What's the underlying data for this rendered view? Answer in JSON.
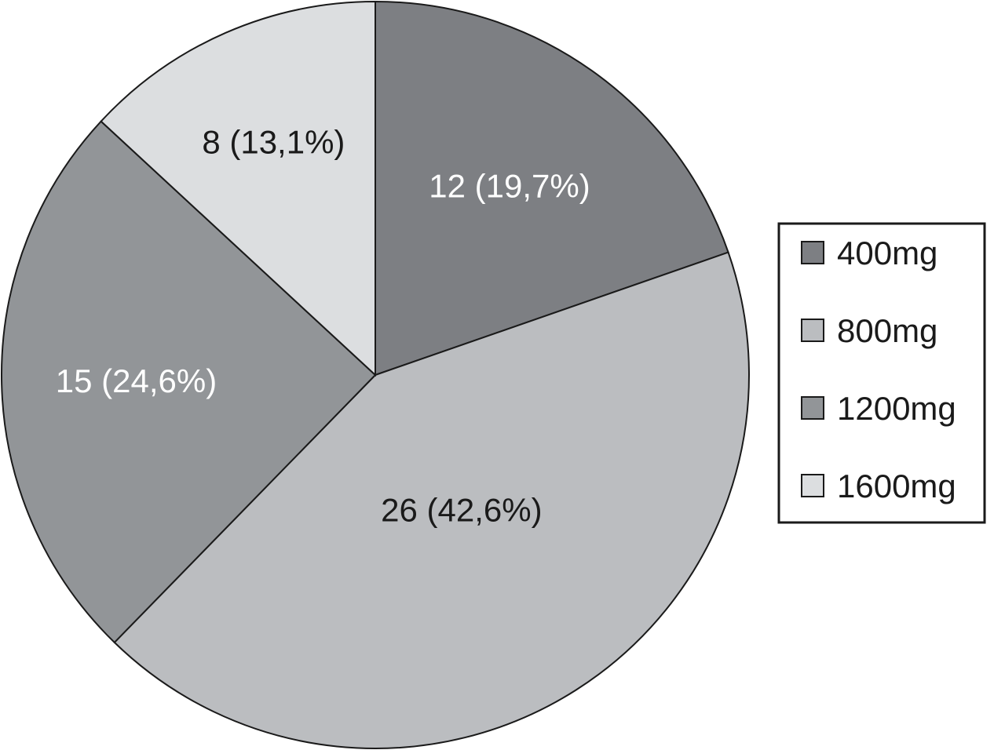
{
  "chart_data": {
    "type": "pie",
    "start": "12 o'clock",
    "direction": "clockwise",
    "slices": [
      {
        "label": "400mg",
        "value": 12,
        "data_label": "12 (19,7%)",
        "color": "#7d7f83",
        "label_color": "#ffffff"
      },
      {
        "label": "800mg",
        "value": 26,
        "data_label": "26 (42,6%)",
        "color": "#bbbdc0",
        "label_color": "#1a1a1a"
      },
      {
        "label": "1200mg",
        "value": 15,
        "data_label": "15 (24,6%)",
        "color": "#929598",
        "label_color": "#ffffff"
      },
      {
        "label": "1600mg",
        "value": 8,
        "data_label": "8 (13,1%)",
        "color": "#dcdee0",
        "label_color": "#1a1a1a"
      }
    ],
    "legend": {
      "placement": "right",
      "entries": [
        "400mg",
        "800mg",
        "1200mg",
        "1600mg"
      ]
    }
  }
}
